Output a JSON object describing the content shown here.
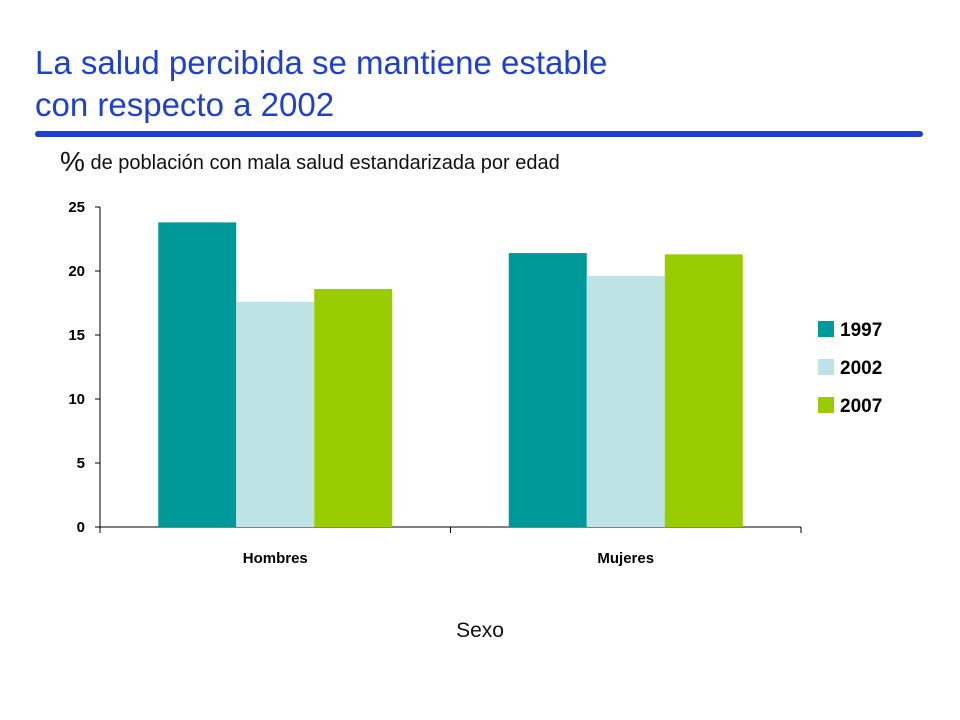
{
  "slide": {
    "title": "La salud percibida se mantiene estable\ncon respecto a 2002",
    "subtitle_pct": "%",
    "subtitle_text": "de población con mala salud estandarizada por edad"
  },
  "chart_data": {
    "type": "bar",
    "title": "",
    "xlabel": "Sexo",
    "ylabel": "",
    "categories": [
      "Hombres",
      "Mujeres"
    ],
    "series": [
      {
        "name": "1997",
        "values": [
          23.8,
          21.4
        ],
        "color": "#009999"
      },
      {
        "name": "2002",
        "values": [
          17.6,
          19.6
        ],
        "color": "#bde3e6"
      },
      {
        "name": "2007",
        "values": [
          18.6,
          21.3
        ],
        "color": "#99cc00"
      }
    ],
    "ylim": [
      0,
      25
    ],
    "yticks": [
      0,
      5,
      10,
      15,
      20,
      25
    ],
    "grid": false,
    "legend_position": "right"
  }
}
